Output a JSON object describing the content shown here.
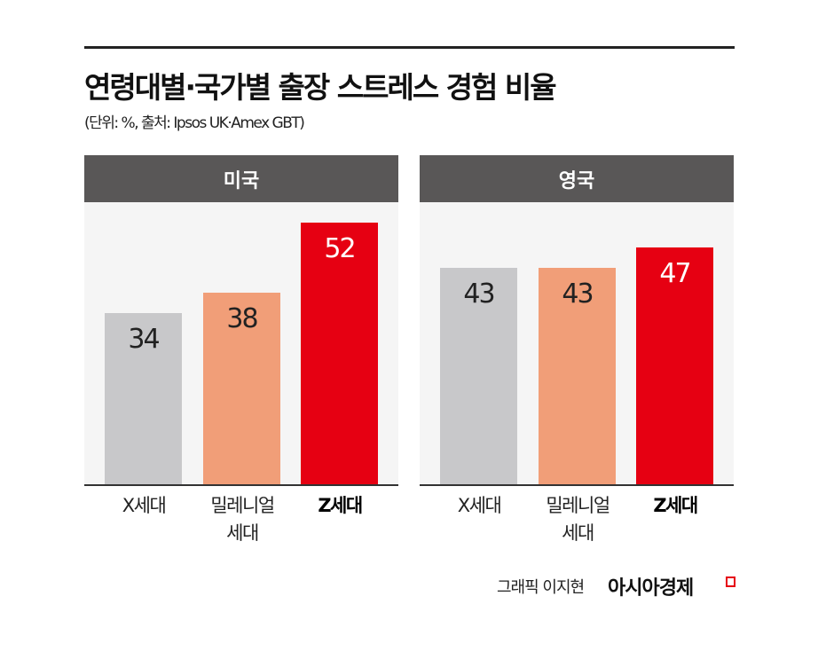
{
  "title": "연령대별·국가별 출장 스트레스 경험 비율",
  "subtitle": "(단위: %, 출처: Ipsos UK·Amex GBT)",
  "credit": "그래픽 이지현",
  "brand": "아시아경제",
  "chart_data": {
    "type": "bar",
    "unit": "%",
    "categories": [
      "X세대",
      "밀레니얼 세대",
      "Z세대"
    ],
    "category_lines": [
      [
        "X세대"
      ],
      [
        "밀레니얼",
        "세대"
      ],
      [
        "Z세대"
      ]
    ],
    "colors": [
      "#c8c8ca",
      "#f19e78",
      "#e60012"
    ],
    "panels": [
      {
        "title": "미국",
        "values": [
          34,
          38,
          52
        ]
      },
      {
        "title": "영국",
        "values": [
          43,
          43,
          47
        ]
      }
    ],
    "ylim": [
      0,
      56
    ]
  }
}
